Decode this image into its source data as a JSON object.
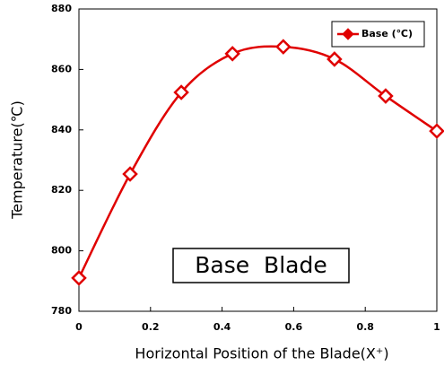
{
  "chart_data": {
    "type": "line",
    "x_label": "Horizontal Position of the Blade(X⁺)",
    "y_label": "Temperature(℃)",
    "annotation": "Base  Blade",
    "x": [
      0,
      0.143,
      0.286,
      0.429,
      0.571,
      0.714,
      0.857,
      1
    ],
    "series": [
      {
        "name": "Base (℃)",
        "color": "#e00000",
        "values": [
          791,
          825.4,
          852.4,
          865.2,
          867.5,
          863.4,
          851.2,
          839.6
        ]
      }
    ],
    "xlim": [
      0,
      1
    ],
    "xticks": [
      0,
      0.2,
      0.4,
      0.6,
      0.8,
      1
    ],
    "ylim": [
      780,
      880
    ],
    "yticks": [
      780,
      800,
      820,
      840,
      860,
      880
    ],
    "legend": "upper right",
    "smooth": true,
    "grid": false
  }
}
